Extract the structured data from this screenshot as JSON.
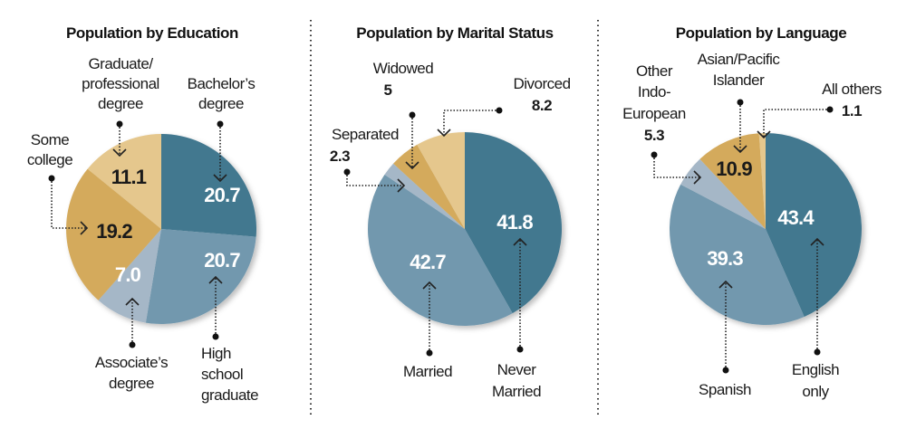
{
  "colors": {
    "dark": "#43788f",
    "mid": "#7298ae",
    "light": "#a5b7c7",
    "gold": "#d4aa5c",
    "lightgold": "#e5c78d"
  },
  "chart_data": [
    {
      "type": "pie",
      "title": "Population by Education",
      "slices": [
        {
          "label": "Bachelor’s degree",
          "value": 20.7,
          "display": "20.7",
          "color": "dark"
        },
        {
          "label": "High school graduate",
          "value": 20.7,
          "display": "20.7",
          "color": "mid"
        },
        {
          "label": "Associate’s degree",
          "value": 7.0,
          "display": "7.0",
          "color": "light"
        },
        {
          "label": "Some college",
          "value": 19.2,
          "display": "19.2",
          "color": "gold"
        },
        {
          "label": "Graduate/professional degree",
          "value": 11.1,
          "display": "11.1",
          "color": "lightgold"
        }
      ],
      "label_lines": {
        "graduate": [
          "Graduate/",
          "professional",
          "degree"
        ],
        "bachelor": [
          "Bachelor’s",
          "degree"
        ],
        "some_college": [
          "Some",
          "college"
        ],
        "associate": [
          "Associate’s",
          "degree"
        ],
        "high_school": [
          "High",
          "school",
          "graduate"
        ]
      }
    },
    {
      "type": "pie",
      "title": "Population by Marital Status",
      "slices": [
        {
          "label": "Never Married",
          "value": 41.8,
          "display": "41.8",
          "color": "dark"
        },
        {
          "label": "Married",
          "value": 42.7,
          "display": "42.7",
          "color": "mid"
        },
        {
          "label": "Separated",
          "value": 2.3,
          "display": "2.3",
          "color": "light"
        },
        {
          "label": "Widowed",
          "value": 5,
          "display": "5",
          "color": "gold"
        },
        {
          "label": "Divorced",
          "value": 8.2,
          "display": "8.2",
          "color": "lightgold"
        }
      ],
      "label_lines": {
        "never_married": [
          "Never",
          "Married"
        ]
      }
    },
    {
      "type": "pie",
      "title": "Population by Language",
      "slices": [
        {
          "label": "English only",
          "value": 43.4,
          "display": "43.4",
          "color": "dark"
        },
        {
          "label": "Spanish",
          "value": 39.3,
          "display": "39.3",
          "color": "mid"
        },
        {
          "label": "Other Indo-European",
          "value": 5.3,
          "display": "5.3",
          "color": "light"
        },
        {
          "label": "Asian/Pacific Islander",
          "value": 10.9,
          "display": "10.9",
          "color": "gold"
        },
        {
          "label": "All others",
          "value": 1.1,
          "display": "1.1",
          "color": "lightgold"
        }
      ],
      "label_lines": {
        "other_indo": [
          "Other",
          "Indo-",
          "European"
        ],
        "asian": [
          "Asian/Pacific",
          "Islander"
        ],
        "english": [
          "English",
          "only"
        ]
      }
    }
  ]
}
